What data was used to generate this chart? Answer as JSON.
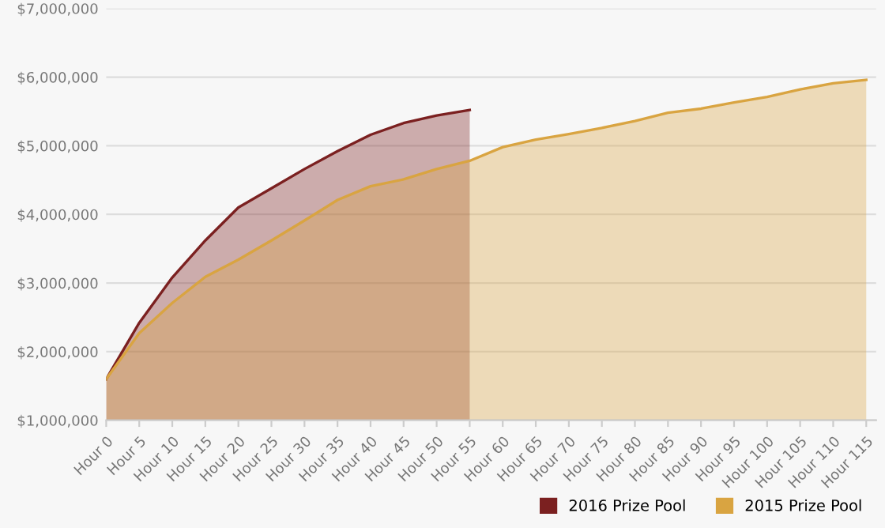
{
  "chart_data": {
    "type": "area",
    "legend": "bottom",
    "grid": "y",
    "ylim": [
      1000000,
      7000000
    ],
    "categories": [
      "Hour 0",
      "Hour 5",
      "Hour 10",
      "Hour 15",
      "Hour 20",
      "Hour 25",
      "Hour 30",
      "Hour 35",
      "Hour 40",
      "Hour 45",
      "Hour 50",
      "Hour 55",
      "Hour 60",
      "Hour 65",
      "Hour 70",
      "Hour 75",
      "Hour 80",
      "Hour 85",
      "Hour 90",
      "Hour 95",
      "Hour 100",
      "Hour 105",
      "Hour 110",
      "Hour 115"
    ],
    "yticks": [
      {
        "value": 1000000,
        "label": "$1,000,000"
      },
      {
        "value": 2000000,
        "label": "$2,000,000"
      },
      {
        "value": 3000000,
        "label": "$3,000,000"
      },
      {
        "value": 4000000,
        "label": "$4,000,000"
      },
      {
        "value": 5000000,
        "label": "$5,000,000"
      },
      {
        "value": 6000000,
        "label": "$6,000,000"
      },
      {
        "value": 7000000,
        "label": "$7,000,000"
      }
    ],
    "series": [
      {
        "name": "2016 Prize Pool",
        "color": "#7b2020",
        "values": [
          1600000,
          2420000,
          3080000,
          3620000,
          4100000,
          4380000,
          4660000,
          4920000,
          5160000,
          5330000,
          5440000,
          5520000,
          null,
          null,
          null,
          null,
          null,
          null,
          null,
          null,
          null,
          null,
          null,
          null
        ]
      },
      {
        "name": "2015 Prize Pool",
        "color": "#d9a441",
        "values": [
          1600000,
          2270000,
          2710000,
          3090000,
          3340000,
          3620000,
          3910000,
          4210000,
          4410000,
          4510000,
          4660000,
          4780000,
          4980000,
          5090000,
          5170000,
          5260000,
          5360000,
          5480000,
          5540000,
          5630000,
          5710000,
          5820000,
          5910000,
          5960000
        ]
      }
    ]
  }
}
